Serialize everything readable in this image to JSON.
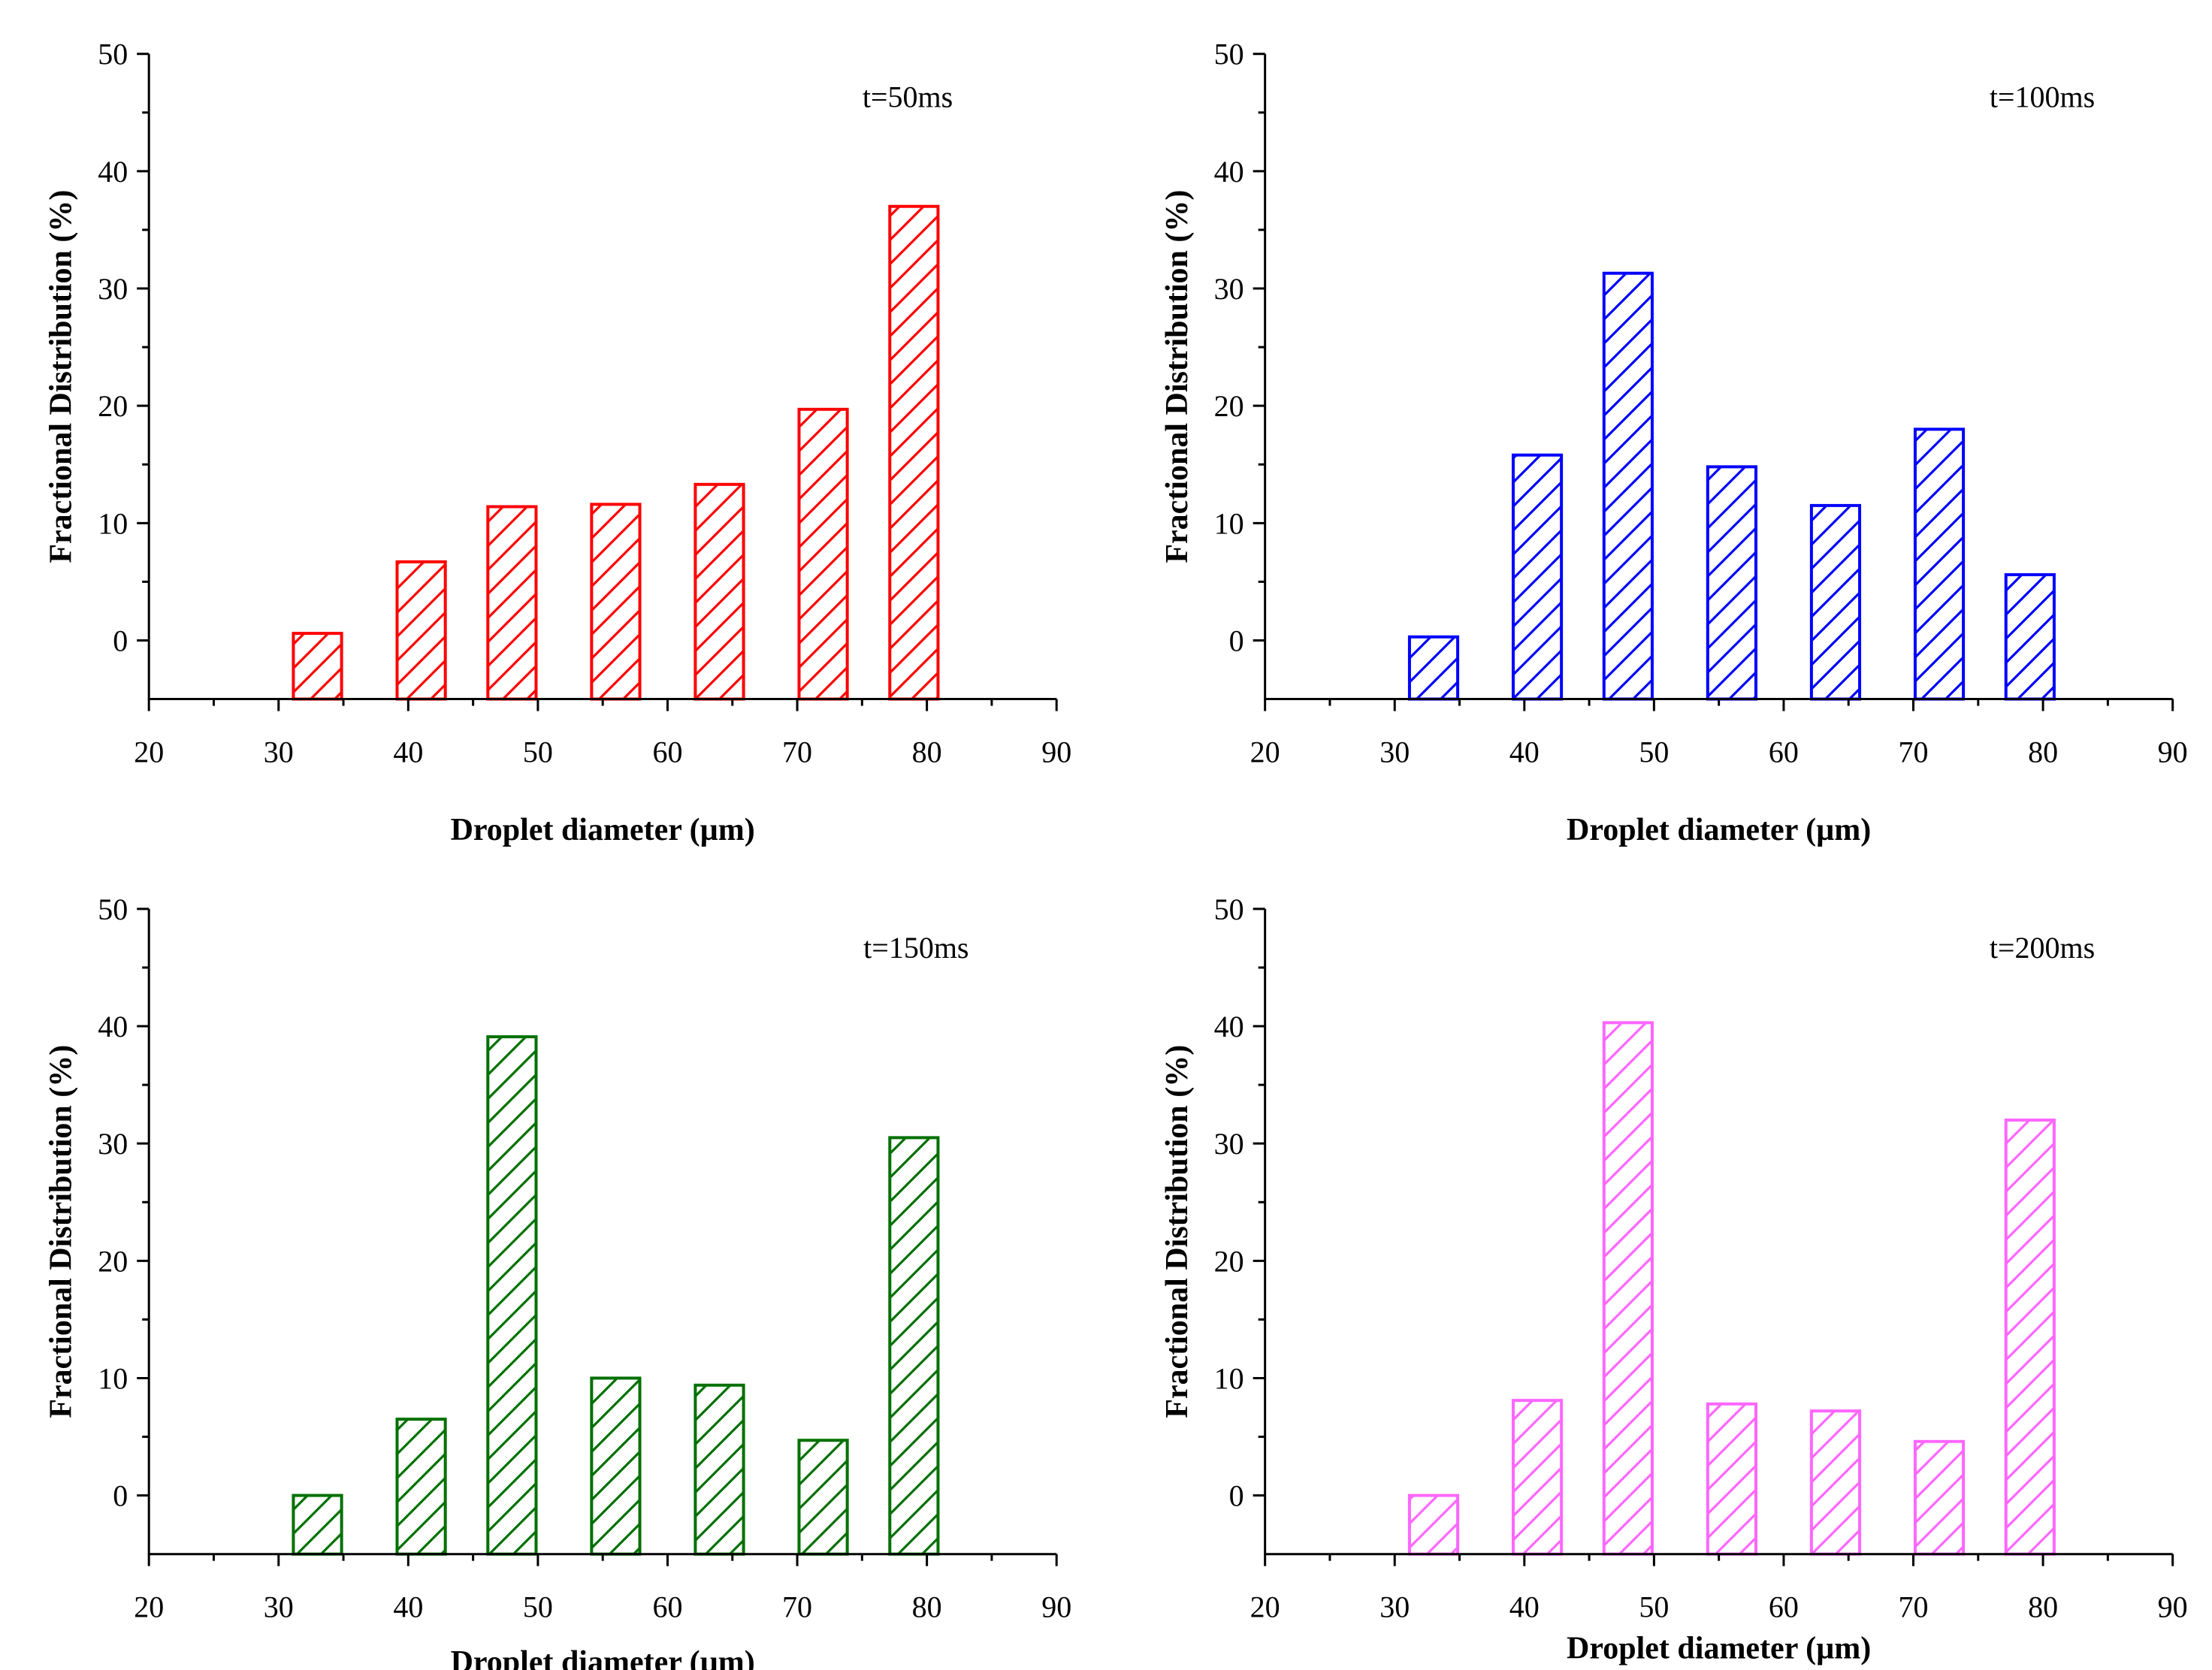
{
  "chart_data": [
    {
      "type": "bar",
      "annotation": "t=50ms",
      "color": "#ff0000",
      "xlabel": "Droplet diameter (µm)",
      "ylabel": "Fractional Distribution (%)",
      "xlim": [
        20,
        90
      ],
      "ylim": [
        -5,
        50
      ],
      "xticks": [
        "20",
        "30",
        "40",
        "50",
        "60",
        "70",
        "80",
        "90"
      ],
      "yticks": [
        "0",
        "10",
        "20",
        "30",
        "40",
        "50"
      ],
      "x": [
        33,
        41,
        48,
        56,
        64,
        72,
        79
      ],
      "values": [
        0.6,
        6.7,
        11.4,
        11.6,
        13.3,
        19.7,
        37.0
      ]
    },
    {
      "type": "bar",
      "annotation": "t=100ms",
      "color": "#0000ff",
      "xlabel": "Droplet diameter (µm)",
      "ylabel": "Fractional Distribution (%)",
      "xlim": [
        20,
        90
      ],
      "ylim": [
        -5,
        50
      ],
      "xticks": [
        "20",
        "30",
        "40",
        "50",
        "60",
        "70",
        "80",
        "90"
      ],
      "yticks": [
        "0",
        "10",
        "20",
        "30",
        "40",
        "50"
      ],
      "x": [
        33,
        41,
        48,
        56,
        64,
        72,
        79
      ],
      "values": [
        0.3,
        15.8,
        31.3,
        14.8,
        11.5,
        18.0,
        5.6
      ]
    },
    {
      "type": "bar",
      "annotation": "t=150ms",
      "color": "#007000",
      "xlabel": "Droplet diameter (µm)",
      "ylabel": "Fractional Distribution (%)",
      "xlim": [
        20,
        90
      ],
      "ylim": [
        -5,
        50
      ],
      "xticks": [
        "20",
        "30",
        "40",
        "50",
        "60",
        "70",
        "80",
        "90"
      ],
      "yticks": [
        "0",
        "10",
        "20",
        "30",
        "40",
        "50"
      ],
      "x": [
        33,
        41,
        48,
        56,
        64,
        72,
        79
      ],
      "values": [
        0.0,
        6.5,
        39.1,
        10.0,
        9.4,
        4.7,
        30.5
      ]
    },
    {
      "type": "bar",
      "annotation": "t=200ms",
      "color": "#ff66ff",
      "xlabel": "Droplet diameter (µm)",
      "ylabel": "Fractional Distribution (%)",
      "xlim": [
        20,
        90
      ],
      "ylim": [
        -5,
        50
      ],
      "xticks": [
        "20",
        "30",
        "40",
        "50",
        "60",
        "70",
        "80",
        "90"
      ],
      "yticks": [
        "0",
        "10",
        "20",
        "30",
        "40",
        "50"
      ],
      "x": [
        33,
        41,
        48,
        56,
        64,
        72,
        79
      ],
      "values": [
        0.0,
        8.1,
        40.3,
        7.8,
        7.2,
        4.6,
        32.0
      ]
    }
  ]
}
